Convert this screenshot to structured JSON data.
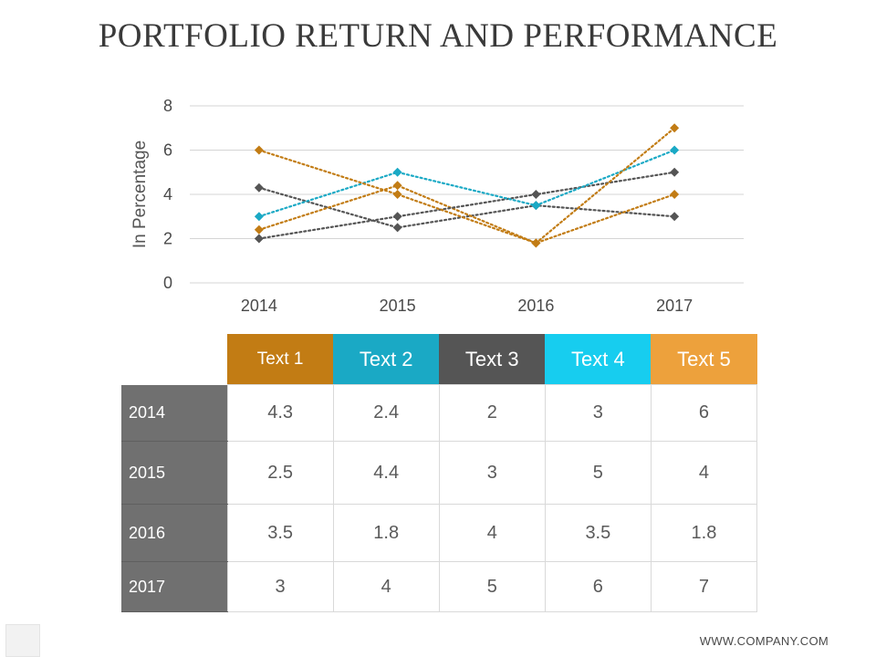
{
  "title": "PORTFOLIO RETURN AND PERFORMANCE",
  "footer": "WWW.COMPANY.COM",
  "colors": {
    "Text 1": "#c27c14",
    "Text 2": "#1aa9c5",
    "Text 3": "#555555",
    "Text 4": "#17cdef",
    "Text 5": "#eda13c",
    "row_header": "#707070"
  },
  "chart_data": {
    "type": "line",
    "categories": [
      "2014",
      "2015",
      "2016",
      "2017"
    ],
    "ylabel": "In Percentage",
    "xlabel": "",
    "ylim": [
      0,
      8
    ],
    "yticks": [
      "0",
      "2",
      "4",
      "6",
      "8"
    ],
    "grid": true,
    "series": [
      {
        "name": "Text 1",
        "values": [
          4.3,
          2.5,
          3.5,
          3
        ],
        "color": "#555555"
      },
      {
        "name": "Text 2",
        "values": [
          2.4,
          4.4,
          1.8,
          4
        ],
        "color": "#c27c14"
      },
      {
        "name": "Text 3",
        "values": [
          2,
          3,
          4,
          5
        ],
        "color": "#555555"
      },
      {
        "name": "Text 4",
        "values": [
          3,
          5,
          3.5,
          6
        ],
        "color": "#1aa9c5"
      },
      {
        "name": "Text 5",
        "values": [
          6,
          4,
          1.8,
          7
        ],
        "color": "#c27c14"
      }
    ]
  },
  "table": {
    "headers": [
      "Text 1",
      "Text 2",
      "Text 3",
      "Text 4",
      "Text 5"
    ],
    "rows": [
      {
        "year": "2014",
        "values": [
          "4.3",
          "2.4",
          "2",
          "3",
          "6"
        ]
      },
      {
        "year": "2015",
        "values": [
          "2.5",
          "4.4",
          "3",
          "5",
          "4"
        ]
      },
      {
        "year": "2016",
        "values": [
          "3.5",
          "1.8",
          "4",
          "3.5",
          "1.8"
        ]
      },
      {
        "year": "2017",
        "values": [
          "3",
          "4",
          "5",
          "6",
          "7"
        ]
      }
    ]
  }
}
